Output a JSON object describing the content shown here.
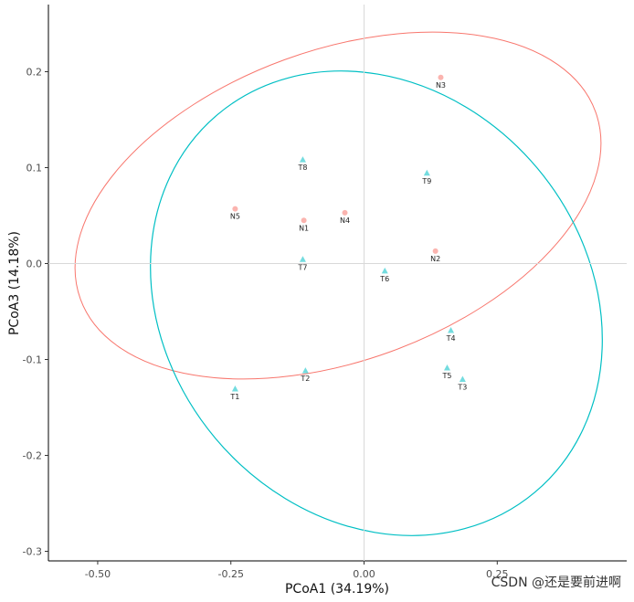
{
  "chart_data": {
    "type": "scatter",
    "x_label": "PCoA1 (34.19%)",
    "y_label": "PCoA3 (14.18%)",
    "xlim": [
      -0.5925,
      0.493
    ],
    "ylim": [
      -0.31,
      0.27
    ],
    "xticks": [
      {
        "value": -0.5,
        "label": "-0.50"
      },
      {
        "value": -0.25,
        "label": "-0.25"
      },
      {
        "value": 0,
        "label": "0.00"
      },
      {
        "value": 0.25,
        "label": "0.25"
      }
    ],
    "yticks": [
      -0.3,
      -0.2,
      -0.1,
      {
        "value": 0,
        "label": "0.0"
      },
      0.1,
      0.2
    ],
    "series": [
      {
        "color": "#F8766D",
        "marker": "circle",
        "labels": [
          "N1",
          "N2",
          "N3",
          "N4",
          "N5"
        ],
        "x": [
          -0.113,
          0.134,
          0.144,
          -0.036,
          -0.242
        ],
        "y": [
          0.045,
          0.013,
          0.194,
          0.053,
          0.057
        ]
      },
      {
        "color": "#00BFC4",
        "marker": "triangle",
        "labels": [
          "T1",
          "T2",
          "T3",
          "T4",
          "T5",
          "T6",
          "T7",
          "T8",
          "T9"
        ],
        "x": [
          -0.242,
          -0.11,
          0.185,
          0.163,
          0.156,
          0.039,
          -0.115,
          -0.115,
          0.118
        ],
        "y": [
          -0.131,
          -0.112,
          -0.121,
          -0.07,
          -0.109,
          -0.008,
          0.004,
          0.108,
          0.094
        ]
      }
    ],
    "watermark": "CSDN @还是要前进啊"
  }
}
